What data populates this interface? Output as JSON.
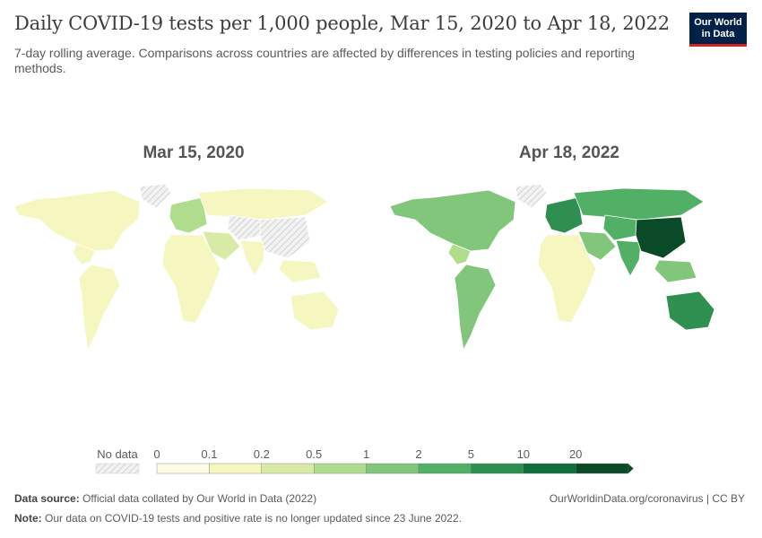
{
  "header": {
    "title": "Daily COVID-19 tests per 1,000 people, Mar 15, 2020 to Apr 18, 2022",
    "subtitle": "7-day rolling average. Comparisons across countries are affected by differences in testing policies and reporting methods.",
    "logo_line1": "Our World",
    "logo_line2": "in Data"
  },
  "chart_data": [
    {
      "type": "choropleth",
      "title": "Mar 15, 2020",
      "regions": [
        {
          "name": "North America",
          "bin": 1
        },
        {
          "name": "Greenland",
          "bin": "none"
        },
        {
          "name": "Central America",
          "bin": 1
        },
        {
          "name": "South America",
          "bin": 1
        },
        {
          "name": "Europe",
          "bin": 3
        },
        {
          "name": "Russia",
          "bin": 1
        },
        {
          "name": "Middle East",
          "bin": 2
        },
        {
          "name": "Africa",
          "bin": 1
        },
        {
          "name": "Central Asia",
          "bin": "none"
        },
        {
          "name": "South Asia",
          "bin": 1
        },
        {
          "name": "China",
          "bin": "none"
        },
        {
          "name": "Southeast Asia",
          "bin": 1
        },
        {
          "name": "Australia",
          "bin": 1
        }
      ]
    },
    {
      "type": "choropleth",
      "title": "Apr 18, 2022",
      "regions": [
        {
          "name": "North America",
          "bin": 4
        },
        {
          "name": "Greenland",
          "bin": "none"
        },
        {
          "name": "Central America",
          "bin": 3
        },
        {
          "name": "South America",
          "bin": 4
        },
        {
          "name": "Europe",
          "bin": 6
        },
        {
          "name": "Russia",
          "bin": 5
        },
        {
          "name": "Middle East",
          "bin": 4
        },
        {
          "name": "Africa",
          "bin": 1
        },
        {
          "name": "Central Asia",
          "bin": 5
        },
        {
          "name": "South Asia",
          "bin": 5
        },
        {
          "name": "China",
          "bin": 8
        },
        {
          "name": "Southeast Asia",
          "bin": 4
        },
        {
          "name": "Australia",
          "bin": 6
        }
      ]
    }
  ],
  "legend": {
    "no_data_label": "No data",
    "thresholds": [
      "0",
      "0.1",
      "0.2",
      "0.5",
      "1",
      "2",
      "5",
      "10",
      "20"
    ],
    "colors": [
      "#fffce6",
      "#f6f7c0",
      "#d8eaa5",
      "#b0dc8e",
      "#81c67b",
      "#52af66",
      "#2e8f50",
      "#0f6f3c",
      "#0a4a28"
    ],
    "no_data_color": "#e3e3e3"
  },
  "footer": {
    "source_label": "Data source:",
    "source_text": "Official data collated by Our World in Data (2022)",
    "url": "OurWorldinData.org/coronavirus | CC BY",
    "note_label": "Note:",
    "note_text": "Our data on COVID-19 tests and positive rate is no longer updated since 23 June 2022."
  }
}
